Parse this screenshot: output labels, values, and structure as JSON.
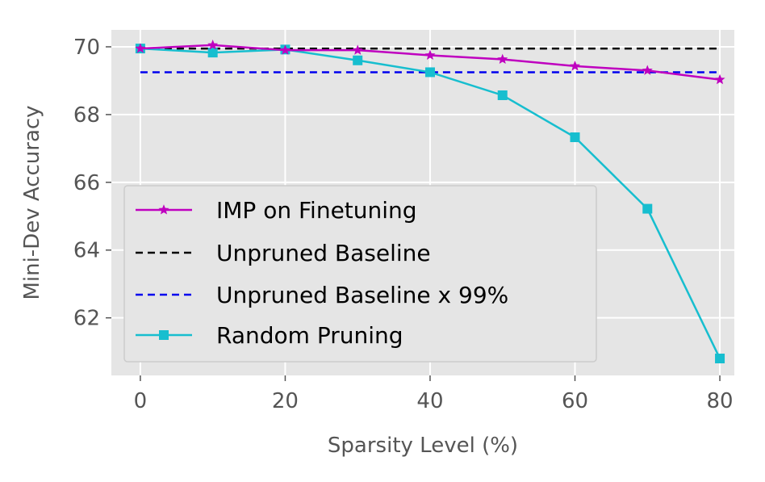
{
  "chart_data": {
    "type": "line",
    "title": "",
    "xlabel": "Sparsity Level (%)",
    "ylabel": "Mini-Dev Accuracy",
    "xlim": [
      -4,
      82
    ],
    "ylim": [
      60.3,
      70.5
    ],
    "xticks": [
      0,
      20,
      40,
      60,
      80
    ],
    "yticks": [
      62,
      64,
      66,
      68,
      70
    ],
    "grid": true,
    "legend_position": "lower-left",
    "series": [
      {
        "name": "IMP on Finetuning",
        "style": "solid",
        "marker": "star",
        "color": "#bf00bf",
        "x": [
          0,
          10,
          20,
          30,
          40,
          50,
          60,
          70,
          80
        ],
        "y": [
          69.95,
          70.05,
          69.9,
          69.9,
          69.75,
          69.63,
          69.43,
          69.3,
          69.03
        ]
      },
      {
        "name": "Unpruned Baseline",
        "style": "dashed",
        "marker": "none",
        "color": "#000000",
        "x": [
          0,
          80
        ],
        "y": [
          69.95,
          69.95
        ]
      },
      {
        "name": "Unpruned Baseline x 99%",
        "style": "dashed",
        "marker": "none",
        "color": "#0000ee",
        "x": [
          0,
          80
        ],
        "y": [
          69.25,
          69.25
        ]
      },
      {
        "name": "Random Pruning",
        "style": "solid",
        "marker": "square",
        "color": "#17becf",
        "x": [
          0,
          10,
          20,
          30,
          40,
          50,
          60,
          70,
          80
        ],
        "y": [
          69.95,
          69.83,
          69.92,
          69.6,
          69.25,
          68.57,
          67.33,
          65.22,
          60.8
        ]
      }
    ]
  }
}
